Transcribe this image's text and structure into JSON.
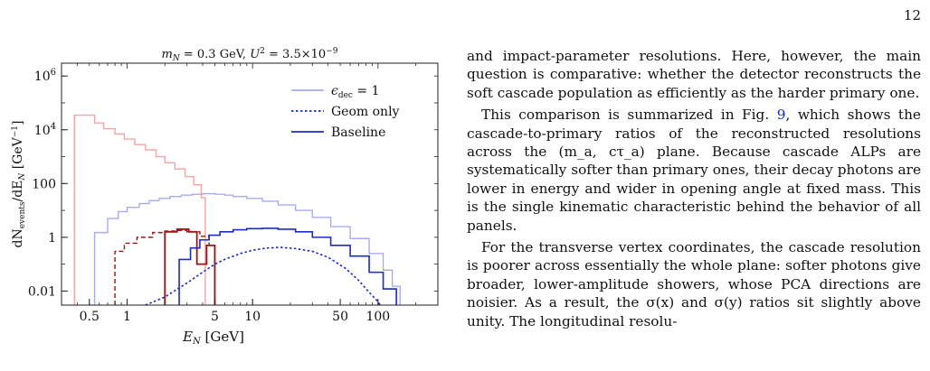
{
  "page": {
    "number": "12"
  },
  "figure": {
    "chart_data": {
      "type": "line",
      "title": "m_N = 0.3 GeV, U² = 3.5×10⁻⁹",
      "title_parts": {
        "m": "m",
        "m_sub": "N",
        "m_rest": " = 0.3 GeV, ",
        "u": "U",
        "u_sup": "2",
        "u_rest": " = 3.5×10",
        "u_exp": "−9"
      },
      "xlabel": "E_N [GeV]",
      "xlabel_parts": {
        "e": "E",
        "e_sub": "N",
        "rest": " [GeV]"
      },
      "ylabel": "dN_events/dE_N [GeV⁻¹]",
      "ylabel_parts": {
        "a": "dN",
        "a_sub": "events",
        "b": "/dE",
        "b_sub": "N",
        "c": " [GeV",
        "c_sup": "−1",
        "d": "]"
      },
      "x_scale": "log",
      "y_scale": "log",
      "xlim": [
        0.3,
        300
      ],
      "ylim": [
        0.003,
        3000000
      ],
      "x_ticks": [
        {
          "value": 0.5,
          "label": "0.5"
        },
        {
          "value": 1,
          "label": "1"
        },
        {
          "value": 5,
          "label": "5"
        },
        {
          "value": 10,
          "label": "10"
        },
        {
          "value": 50,
          "label": "50"
        },
        {
          "value": 100,
          "label": "100"
        }
      ],
      "y_ticks": [
        {
          "value": 0.01,
          "label": "0.01"
        },
        {
          "value": 1,
          "label": "1"
        },
        {
          "value": 100,
          "label": "100"
        },
        {
          "value": 10000,
          "label": "10",
          "sup": "4"
        },
        {
          "value": 1000000,
          "label": "10",
          "sup": "6"
        }
      ],
      "legend_position": "top-right",
      "legend": [
        {
          "label": "ϵ_dec = 1",
          "parts": {
            "a": "ϵ",
            "sub": "dec",
            "b": " = 1"
          },
          "color": "#a9abf0",
          "dash": "solid"
        },
        {
          "label": "Geom only",
          "color": "#1a2bc7",
          "dash": "dotted"
        },
        {
          "label": "Baseline",
          "color": "#1a2bc7",
          "dash": "solid"
        }
      ],
      "series": [
        {
          "color": "#f4a6a6",
          "dash": "solid",
          "width": 1.4,
          "step": true,
          "points": [
            [
              0.38,
              0.003
            ],
            [
              0.38,
              35000
            ],
            [
              0.55,
              35000
            ],
            [
              0.55,
              18000
            ],
            [
              0.65,
              18000
            ],
            [
              0.65,
              11000
            ],
            [
              0.8,
              11000
            ],
            [
              0.8,
              7000
            ],
            [
              0.95,
              7000
            ],
            [
              0.95,
              4500
            ],
            [
              1.15,
              4500
            ],
            [
              1.15,
              2800
            ],
            [
              1.4,
              2800
            ],
            [
              1.4,
              1800
            ],
            [
              1.7,
              1800
            ],
            [
              1.7,
              1000
            ],
            [
              2.0,
              1000
            ],
            [
              2.0,
              600
            ],
            [
              2.4,
              600
            ],
            [
              2.4,
              350
            ],
            [
              2.9,
              350
            ],
            [
              2.9,
              180
            ],
            [
              3.4,
              180
            ],
            [
              3.4,
              90
            ],
            [
              3.9,
              90
            ],
            [
              3.9,
              30
            ],
            [
              4.2,
              30
            ],
            [
              4.2,
              0.003
            ]
          ]
        },
        {
          "color": "#a9abf0",
          "dash": "solid",
          "width": 1.4,
          "step": true,
          "points": [
            [
              0.55,
              0.003
            ],
            [
              0.55,
              1.5
            ],
            [
              0.7,
              1.5
            ],
            [
              0.7,
              5
            ],
            [
              0.85,
              5
            ],
            [
              0.85,
              9
            ],
            [
              1.0,
              9
            ],
            [
              1.0,
              13
            ],
            [
              1.25,
              13
            ],
            [
              1.25,
              18
            ],
            [
              1.5,
              18
            ],
            [
              1.5,
              23
            ],
            [
              1.8,
              23
            ],
            [
              1.8,
              28
            ],
            [
              2.2,
              28
            ],
            [
              2.2,
              33
            ],
            [
              2.7,
              33
            ],
            [
              2.7,
              37
            ],
            [
              3.3,
              37
            ],
            [
              3.3,
              40
            ],
            [
              4.0,
              40
            ],
            [
              4.0,
              42
            ],
            [
              5,
              42
            ],
            [
              5,
              40
            ],
            [
              6,
              40
            ],
            [
              6,
              37
            ],
            [
              7,
              37
            ],
            [
              7,
              33
            ],
            [
              9,
              33
            ],
            [
              9,
              28
            ],
            [
              12,
              28
            ],
            [
              12,
              22
            ],
            [
              16,
              22
            ],
            [
              16,
              16
            ],
            [
              22,
              16
            ],
            [
              22,
              10
            ],
            [
              30,
              10
            ],
            [
              30,
              5.5
            ],
            [
              42,
              5.5
            ],
            [
              42,
              2.5
            ],
            [
              60,
              2.5
            ],
            [
              60,
              0.9
            ],
            [
              85,
              0.9
            ],
            [
              85,
              0.25
            ],
            [
              110,
              0.25
            ],
            [
              110,
              0.06
            ],
            [
              130,
              0.06
            ],
            [
              130,
              0.015
            ],
            [
              150,
              0.015
            ],
            [
              150,
              0.003
            ]
          ]
        },
        {
          "color": "#9e1515",
          "dash": "dashed",
          "width": 1.4,
          "step": true,
          "points": [
            [
              0.8,
              0.003
            ],
            [
              0.8,
              0.3
            ],
            [
              0.95,
              0.3
            ],
            [
              0.95,
              0.6
            ],
            [
              1.2,
              0.6
            ],
            [
              1.2,
              1.0
            ],
            [
              1.6,
              1.0
            ],
            [
              1.6,
              1.5
            ],
            [
              2.0,
              1.5
            ],
            [
              2.0,
              1.7
            ],
            [
              2.5,
              1.7
            ],
            [
              2.5,
              1.8
            ],
            [
              3.0,
              1.8
            ],
            [
              3.0,
              1.6
            ],
            [
              3.8,
              1.6
            ],
            [
              3.8,
              1.1
            ],
            [
              4.5,
              1.1
            ],
            [
              4.5,
              0.5
            ],
            [
              5.0,
              0.5
            ],
            [
              5.0,
              0.003
            ]
          ]
        },
        {
          "color": "#9e1515",
          "dash": "solid",
          "width": 1.8,
          "step": true,
          "points": [
            [
              2.0,
              0.003
            ],
            [
              2.0,
              1.6
            ],
            [
              2.5,
              1.6
            ],
            [
              2.5,
              2.0
            ],
            [
              3.1,
              2.0
            ],
            [
              3.1,
              1.6
            ],
            [
              3.6,
              1.6
            ],
            [
              3.6,
              0.1
            ],
            [
              4.3,
              0.1
            ],
            [
              4.3,
              0.5
            ],
            [
              5.0,
              0.5
            ],
            [
              5.0,
              0.003
            ]
          ]
        },
        {
          "color": "#1a2bc7",
          "dash": "dotted",
          "width": 1.6,
          "step": false,
          "points": [
            [
              1.4,
              0.003
            ],
            [
              2,
              0.006
            ],
            [
              3,
              0.02
            ],
            [
              4,
              0.05
            ],
            [
              5,
              0.1
            ],
            [
              6,
              0.15
            ],
            [
              8,
              0.25
            ],
            [
              10,
              0.33
            ],
            [
              13,
              0.4
            ],
            [
              17,
              0.42
            ],
            [
              22,
              0.38
            ],
            [
              30,
              0.3
            ],
            [
              40,
              0.18
            ],
            [
              55,
              0.07
            ],
            [
              70,
              0.025
            ],
            [
              85,
              0.009
            ],
            [
              100,
              0.004
            ],
            [
              110,
              0.002
            ]
          ]
        },
        {
          "color": "#1a2bc7",
          "dash": "solid",
          "width": 1.6,
          "step": true,
          "points": [
            [
              2.6,
              0.003
            ],
            [
              2.6,
              0.15
            ],
            [
              3.2,
              0.15
            ],
            [
              3.2,
              0.4
            ],
            [
              3.8,
              0.4
            ],
            [
              3.8,
              0.8
            ],
            [
              4.5,
              0.8
            ],
            [
              4.5,
              1.2
            ],
            [
              5.5,
              1.2
            ],
            [
              5.5,
              1.6
            ],
            [
              7,
              1.6
            ],
            [
              7,
              1.9
            ],
            [
              9,
              1.9
            ],
            [
              9,
              2.1
            ],
            [
              12,
              2.1
            ],
            [
              12,
              2.15
            ],
            [
              16,
              2.15
            ],
            [
              16,
              2.0
            ],
            [
              22,
              2.0
            ],
            [
              22,
              1.6
            ],
            [
              30,
              1.6
            ],
            [
              30,
              1.0
            ],
            [
              42,
              1.0
            ],
            [
              42,
              0.5
            ],
            [
              60,
              0.5
            ],
            [
              60,
              0.2
            ],
            [
              85,
              0.2
            ],
            [
              85,
              0.05
            ],
            [
              110,
              0.05
            ],
            [
              110,
              0.012
            ],
            [
              140,
              0.012
            ],
            [
              140,
              0.003
            ]
          ]
        }
      ]
    }
  },
  "body_text": {
    "p1": "and impact-parameter resolutions. Here, however, the main question is comparative: whether the detector reconstructs the soft cascade population as efficiently as the harder primary one.",
    "p2_before": "This comparison is summarized in Fig. ",
    "p2_ref": "9",
    "p2_after": ", which shows the cascade-to-primary ratios of the reconstructed resolutions across the (m_a, cτ_a) plane. Because cascade ALPs are systematically softer than primary ones, their decay photons are lower in energy and wider in opening angle at fixed mass. This is the single kinematic characteristic behind the behavior of all panels.",
    "p3": "For the transverse vertex coordinates, the cascade resolution is poorer across essentially the whole plane: softer photons give broader, lower-amplitude showers, whose PCA directions are noisier. As a result, the σ(x) and σ(y) ratios sit slightly above unity. The longitudinal resolu-"
  }
}
